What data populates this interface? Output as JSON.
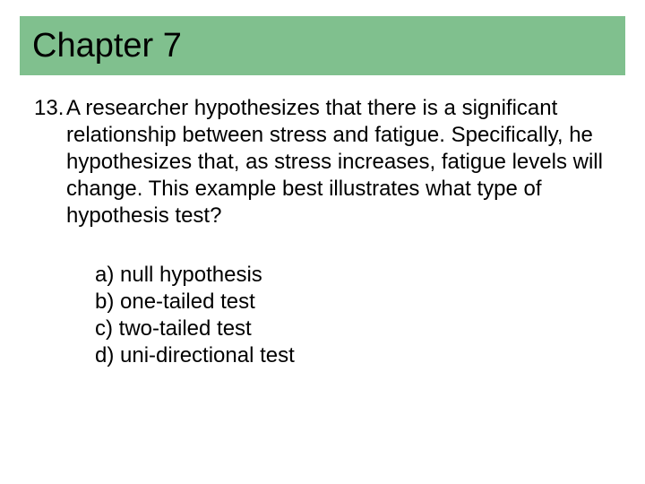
{
  "header": {
    "title": "Chapter 7",
    "background_color": "#80c08e",
    "title_color": "#000000",
    "title_fontsize": 38
  },
  "question": {
    "number": "13.",
    "text": "A researcher hypothesizes that there is a significant relationship between stress and fatigue. Specifically, he hypothesizes that, as stress increases, fatigue levels will change. This example best illustrates what type of hypothesis test?",
    "fontsize": 24,
    "color": "#000000"
  },
  "options": [
    {
      "label": "a) null hypothesis"
    },
    {
      "label": "b) one-tailed test"
    },
    {
      "label": "c) two-tailed test"
    },
    {
      "label": "d) uni-directional test"
    }
  ],
  "layout": {
    "slide_width": 720,
    "slide_height": 540,
    "background_color": "#ffffff"
  }
}
